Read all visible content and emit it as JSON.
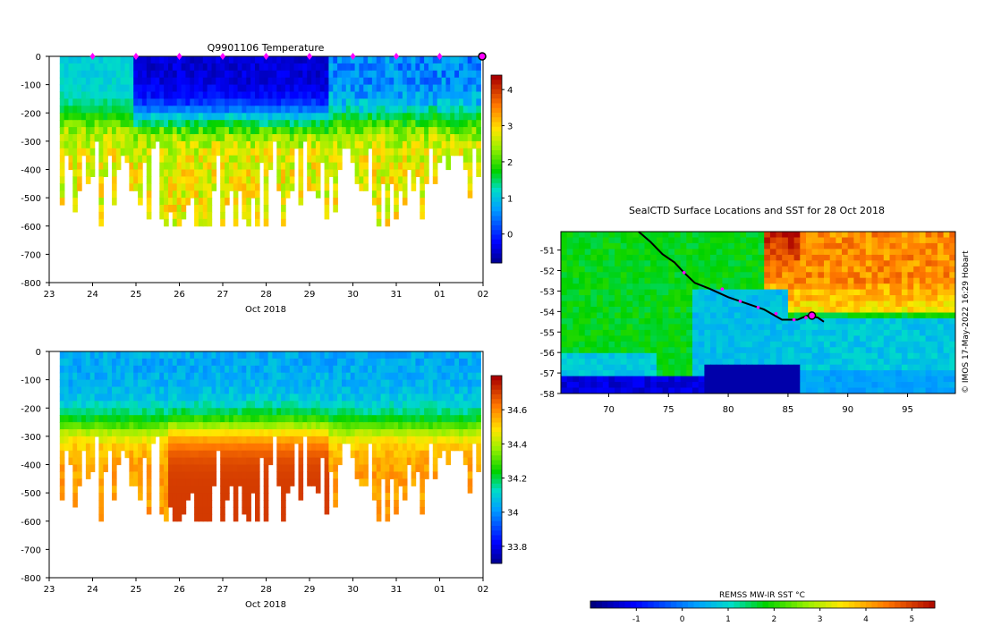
{
  "figure": {
    "credit": "© IMOS 17-May-2022 16:29 Hobart"
  },
  "chart_data": [
    {
      "type": "heatmap",
      "id": "temperature",
      "title": "Q9901106  Temperature",
      "xlabel": "Oct 2018",
      "ylabel": "",
      "x_ticks": [
        "23",
        "24",
        "25",
        "26",
        "27",
        "28",
        "29",
        "30",
        "31",
        "01",
        "02"
      ],
      "y_ticks": [
        "0",
        "-100",
        "-200",
        "-300",
        "-400",
        "-500",
        "-600",
        "-700",
        "-800"
      ],
      "ylim": [
        -800,
        0
      ],
      "colorbar": {
        "ticks": [
          "0",
          "1",
          "2",
          "3",
          "4"
        ],
        "range": [
          -0.8,
          4.4
        ]
      },
      "marker_days": [
        24,
        25,
        26,
        27,
        28,
        29,
        30,
        31,
        32
      ],
      "end_marker_day": 33
    },
    {
      "type": "heatmap",
      "id": "salinity",
      "title": "",
      "xlabel": "Oct 2018",
      "ylabel": "",
      "x_ticks": [
        "23",
        "24",
        "25",
        "26",
        "27",
        "28",
        "29",
        "30",
        "31",
        "01",
        "02"
      ],
      "y_ticks": [
        "0",
        "-100",
        "-200",
        "-300",
        "-400",
        "-500",
        "-600",
        "-700",
        "-800"
      ],
      "ylim": [
        -800,
        0
      ],
      "colorbar": {
        "ticks": [
          "33.8",
          "34",
          "34.2",
          "34.4",
          "34.6"
        ],
        "range": [
          33.7,
          34.8
        ]
      }
    },
    {
      "type": "heatmap",
      "id": "sst-map",
      "title": "SealCTD Surface Locations and SST for 28 Oct 2018",
      "x_ticks": [
        "70",
        "75",
        "80",
        "85",
        "90",
        "95"
      ],
      "y_ticks": [
        "-51",
        "-52",
        "-53",
        "-54",
        "-55",
        "-56",
        "-57",
        "-58"
      ],
      "xlim": [
        66,
        99
      ],
      "ylim": [
        -58,
        -50.1
      ],
      "track": [
        [
          72.5,
          -50.1
        ],
        [
          73.5,
          -50.6
        ],
        [
          74.5,
          -51.2
        ],
        [
          75.5,
          -51.6
        ],
        [
          76.3,
          -52.1
        ],
        [
          77.2,
          -52.6
        ],
        [
          78.5,
          -52.9
        ],
        [
          80,
          -53.3
        ],
        [
          81.5,
          -53.6
        ],
        [
          83,
          -53.9
        ],
        [
          84.5,
          -54.4
        ],
        [
          85.8,
          -54.4
        ],
        [
          86.6,
          -54.2
        ],
        [
          87.5,
          -54.3
        ],
        [
          88,
          -54.5
        ]
      ],
      "track_points": [
        [
          76.3,
          -52.1
        ],
        [
          79.5,
          -52.9
        ],
        [
          81,
          -53.5
        ],
        [
          82.5,
          -53.8
        ],
        [
          84,
          -54.1
        ],
        [
          85.5,
          -54.4
        ],
        [
          86.5,
          -54.3
        ]
      ],
      "current_position": [
        87.0,
        -54.2
      ],
      "colorbar": {
        "title": "REMSS MW-IR SST °C",
        "ticks": [
          "-1",
          "0",
          "1",
          "2",
          "3",
          "4",
          "5"
        ],
        "range": [
          -2,
          5.5
        ]
      }
    }
  ]
}
